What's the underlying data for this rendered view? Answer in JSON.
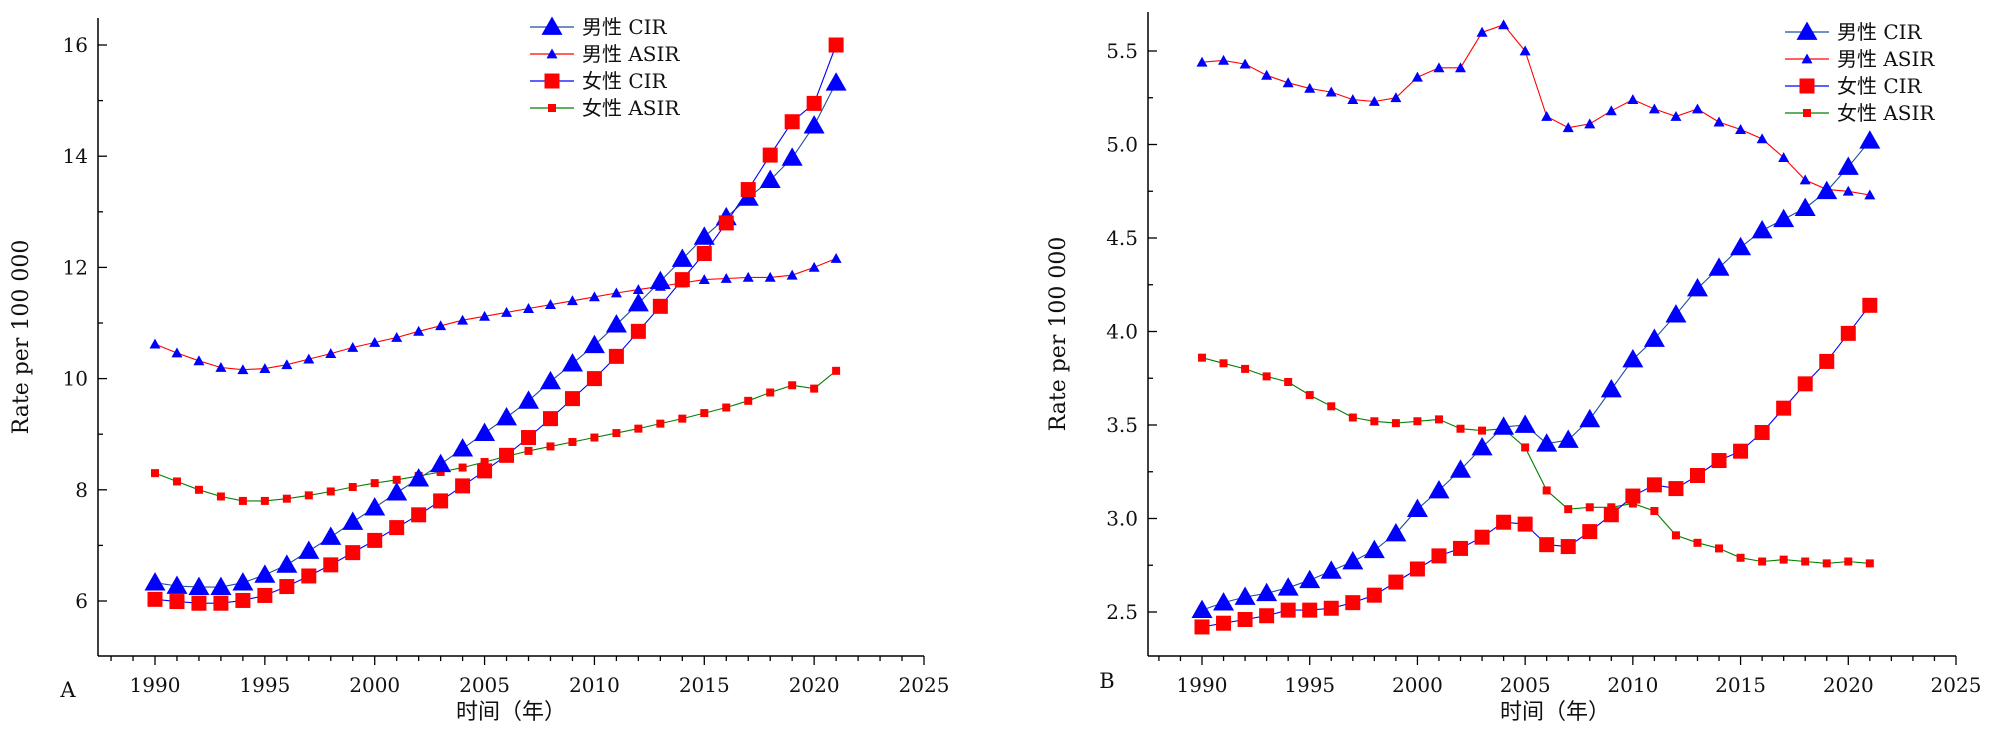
{
  "chart_data": [
    {
      "type": "line",
      "panel_label": "A",
      "xlabel": "时间（年）",
      "ylabel": "Rate per 100 000",
      "xlim": [
        1988,
        2025
      ],
      "ylim": [
        5,
        16.5
      ],
      "x_ticks": [
        1990,
        1995,
        2000,
        2005,
        2010,
        2015,
        2020,
        2025
      ],
      "y_ticks": [
        6,
        8,
        10,
        12,
        14,
        16
      ],
      "grid": false,
      "legend_position": "top-center",
      "x": [
        1990,
        1991,
        1992,
        1993,
        1994,
        1995,
        1996,
        1997,
        1998,
        1999,
        2000,
        2001,
        2002,
        2003,
        2004,
        2005,
        2006,
        2007,
        2008,
        2009,
        2010,
        2011,
        2012,
        2013,
        2014,
        2015,
        2016,
        2017,
        2018,
        2019,
        2020,
        2021
      ],
      "series": [
        {
          "name": "男性 CIR",
          "marker": "triangle-large",
          "color": "#0000ff",
          "line_color": "#1f4e9c",
          "values": [
            6.33,
            6.27,
            6.25,
            6.25,
            6.33,
            6.47,
            6.65,
            6.9,
            7.15,
            7.42,
            7.68,
            7.95,
            8.2,
            8.46,
            8.74,
            9.02,
            9.3,
            9.6,
            9.95,
            10.27,
            10.6,
            10.97,
            11.35,
            11.75,
            12.15,
            12.55,
            12.9,
            13.25,
            13.57,
            13.97,
            14.55,
            15.32
          ]
        },
        {
          "name": "男性 ASIR",
          "marker": "triangle-small",
          "color": "#0000ff",
          "line_color": "#ff0000",
          "values": [
            10.62,
            10.46,
            10.32,
            10.2,
            10.16,
            10.18,
            10.25,
            10.35,
            10.45,
            10.56,
            10.65,
            10.74,
            10.85,
            10.95,
            11.05,
            11.12,
            11.19,
            11.26,
            11.33,
            11.4,
            11.47,
            11.54,
            11.6,
            11.66,
            11.72,
            11.78,
            11.8,
            11.82,
            11.82,
            11.86,
            12.0,
            12.16
          ]
        },
        {
          "name": "女性 CIR",
          "marker": "square-large",
          "color": "#ff0000",
          "line_color": "#0000ff",
          "values": [
            6.03,
            5.99,
            5.96,
            5.96,
            6.01,
            6.1,
            6.26,
            6.45,
            6.65,
            6.87,
            7.09,
            7.32,
            7.55,
            7.8,
            8.07,
            8.34,
            8.62,
            8.94,
            9.28,
            9.64,
            10.0,
            10.4,
            10.85,
            11.3,
            11.78,
            12.25,
            12.8,
            13.4,
            14.02,
            14.62,
            14.95,
            16.0
          ]
        },
        {
          "name": "女性 ASIR",
          "marker": "square-small",
          "color": "#ff0000",
          "line_color": "#008000",
          "values": [
            8.3,
            8.15,
            8.0,
            7.88,
            7.8,
            7.8,
            7.84,
            7.9,
            7.97,
            8.05,
            8.12,
            8.18,
            8.25,
            8.32,
            8.4,
            8.5,
            8.6,
            8.7,
            8.78,
            8.86,
            8.94,
            9.02,
            9.1,
            9.19,
            9.28,
            9.38,
            9.48,
            9.6,
            9.75,
            9.88,
            9.82,
            10.14
          ]
        }
      ]
    },
    {
      "type": "line",
      "panel_label": "B",
      "xlabel": "时间（年）",
      "ylabel": "Rate per 100 000",
      "xlim": [
        1988,
        2025
      ],
      "ylim": [
        2.3,
        5.7
      ],
      "x_ticks": [
        1990,
        1995,
        2000,
        2005,
        2010,
        2015,
        2020,
        2025
      ],
      "y_ticks": [
        2.5,
        3.0,
        3.5,
        4.0,
        4.5,
        5.0,
        5.5
      ],
      "grid": false,
      "legend_position": "top-right",
      "x": [
        1990,
        1991,
        1992,
        1993,
        1994,
        1995,
        1996,
        1997,
        1998,
        1999,
        2000,
        2001,
        2002,
        2003,
        2004,
        2005,
        2006,
        2007,
        2008,
        2009,
        2010,
        2011,
        2012,
        2013,
        2014,
        2015,
        2016,
        2017,
        2018,
        2019,
        2020,
        2021
      ],
      "series": [
        {
          "name": "男性 CIR",
          "marker": "triangle-large",
          "color": "#0000ff",
          "line_color": "#1f4e9c",
          "values": [
            2.51,
            2.55,
            2.58,
            2.6,
            2.63,
            2.67,
            2.72,
            2.77,
            2.83,
            2.92,
            3.05,
            3.15,
            3.26,
            3.38,
            3.49,
            3.5,
            3.4,
            3.42,
            3.53,
            3.69,
            3.85,
            3.96,
            4.09,
            4.23,
            4.34,
            4.45,
            4.54,
            4.6,
            4.66,
            4.75,
            4.88,
            5.02
          ]
        },
        {
          "name": "男性 ASIR",
          "marker": "triangle-small",
          "color": "#0000ff",
          "line_color": "#ff0000",
          "values": [
            5.44,
            5.45,
            5.43,
            5.37,
            5.33,
            5.3,
            5.28,
            5.24,
            5.23,
            5.25,
            5.36,
            5.41,
            5.41,
            5.6,
            5.64,
            5.5,
            5.15,
            5.09,
            5.11,
            5.18,
            5.24,
            5.19,
            5.15,
            5.19,
            5.12,
            5.08,
            5.03,
            4.93,
            4.81,
            4.76,
            4.75,
            4.73
          ]
        },
        {
          "name": "女性 CIR",
          "marker": "square-large",
          "color": "#ff0000",
          "line_color": "#0000ff",
          "values": [
            2.42,
            2.44,
            2.46,
            2.48,
            2.51,
            2.51,
            2.52,
            2.55,
            2.59,
            2.66,
            2.73,
            2.8,
            2.84,
            2.9,
            2.98,
            2.97,
            2.86,
            2.85,
            2.93,
            3.02,
            3.12,
            3.18,
            3.16,
            3.23,
            3.31,
            3.36,
            3.46,
            3.59,
            3.72,
            3.84,
            3.99,
            4.14
          ]
        },
        {
          "name": "女性 ASIR",
          "marker": "square-small",
          "color": "#ff0000",
          "line_color": "#008000",
          "values": [
            3.86,
            3.83,
            3.8,
            3.76,
            3.73,
            3.66,
            3.6,
            3.54,
            3.52,
            3.51,
            3.52,
            3.53,
            3.48,
            3.47,
            3.48,
            3.38,
            3.15,
            3.05,
            3.06,
            3.06,
            3.08,
            3.04,
            2.91,
            2.87,
            2.84,
            2.79,
            2.77,
            2.78,
            2.77,
            2.76,
            2.77,
            2.76
          ]
        }
      ]
    }
  ]
}
